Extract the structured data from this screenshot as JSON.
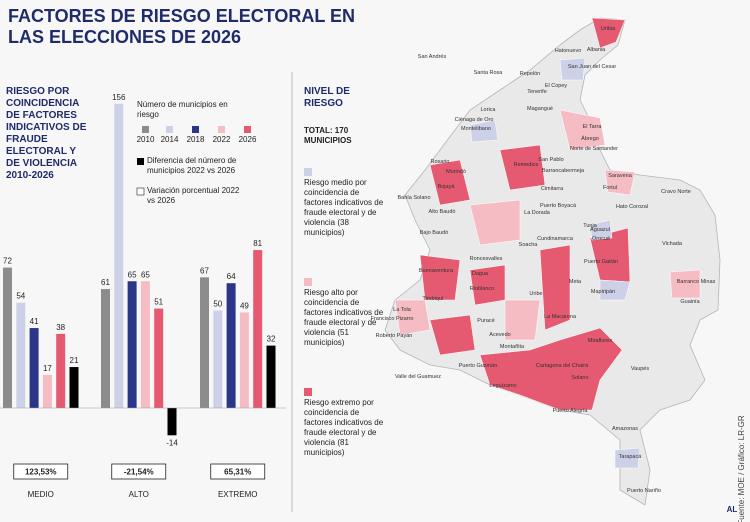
{
  "header": {
    "title": "FACTORES DE RIESGO ELECTORAL EN LAS ELECCIONES DE 2026"
  },
  "chart_data": {
    "type": "bar",
    "title": "RIESGO POR COINCIDENCIA DE FACTORES INDICATIVOS DE FRAUDE ELECTORAL Y DE VIOLENCIA 2010-2026",
    "legend_title": "Número de municipios en riesgo",
    "categories": [
      "MEDIO",
      "ALTO",
      "EXTREMO"
    ],
    "series": [
      {
        "name": "2010",
        "color": "#8c8c8c",
        "values": [
          72,
          61,
          67
        ]
      },
      {
        "name": "2014",
        "color": "#cdd1e8",
        "values": [
          54,
          156,
          50
        ]
      },
      {
        "name": "2018",
        "color": "#2b3688",
        "values": [
          41,
          65,
          64
        ]
      },
      {
        "name": "2022",
        "color": "#f5bcc4",
        "values": [
          17,
          65,
          49
        ]
      },
      {
        "name": "2026",
        "color": "#e65a71",
        "values": [
          38,
          51,
          81
        ]
      },
      {
        "name": "Diferencia del número de municipios 2022 vs 2026",
        "color": "#000000",
        "values": [
          21,
          -14,
          32
        ]
      }
    ],
    "variation": {
      "name": "Variación porcentual 2022 vs 2026",
      "values": [
        123.53,
        -21.54,
        65.31
      ],
      "value_labels": [
        "123,53%",
        "-21,54%",
        "65,31%"
      ]
    }
  },
  "map": {
    "title": "NIVEL DE RIESGO",
    "total": "TOTAL: 170 MUNICIPIOS",
    "levels": [
      {
        "label": "Riesgo medio por coincidencia de factores indicativos de fraude electoral y de violencia (38 municipios)",
        "color": "#cdd1e8"
      },
      {
        "label": "Riesgo alto por coincidencia de factores indicativos de fraude electoral y de violencia (51 municipios)",
        "color": "#f5bcc4"
      },
      {
        "label": "Riesgo extremo por coincidencia de factores indicativos de fraude electoral y de violencia (81 municipios)",
        "color": "#e65a71"
      }
    ],
    "labels": [
      "Uribia",
      "Albania",
      "Hatonuevo",
      "San Juan del Cesar",
      "San Andrés",
      "Santa Rosa",
      "Repelón",
      "El Copey",
      "Tenerife",
      "Magangué",
      "Lorica",
      "Ciénaga de Oro",
      "Montelibano",
      "El Tarra",
      "Ábrego",
      "Norte de Santander",
      "Rosario",
      "San Pablo",
      "Barrancabermeja",
      "Murindó",
      "Remedios",
      "Saravena",
      "Fortul",
      "Cravo Norte",
      "Cimitarra",
      "Bojayá",
      "Bahía Solano",
      "Puerto Boyacá",
      "Hato Corozal",
      "Alto Baudó",
      "La Dorada",
      "Tunja",
      "Bajo Baudó",
      "Aguazul",
      "Orocué",
      "Cundinamarca",
      "Soacha",
      "Vichada",
      "Roncesvalles",
      "Buenaventura",
      "Dagua",
      "Puerto Gaitán",
      "Meta",
      "Barranco Minas",
      "Timbiquí",
      "Rioblanco",
      "Mapiripán",
      "Uribe",
      "Guainía",
      "La Tola",
      "Francisco Pizarro",
      "Puracé",
      "La Macarena",
      "Roberto Payán",
      "Acevedo",
      "Miraflores",
      "Montañita",
      "Puerto Guzmán",
      "Cartagena del Chairá",
      "Vaupés",
      "Valle del Guamuez",
      "Solano",
      "Leguízamo",
      "Puerto Alegría",
      "Amazonas",
      "Tarapacá",
      "Puerto Nariño"
    ]
  },
  "source": "Fuente: MOE / Gráfico: LR-GR",
  "logo": "AL"
}
